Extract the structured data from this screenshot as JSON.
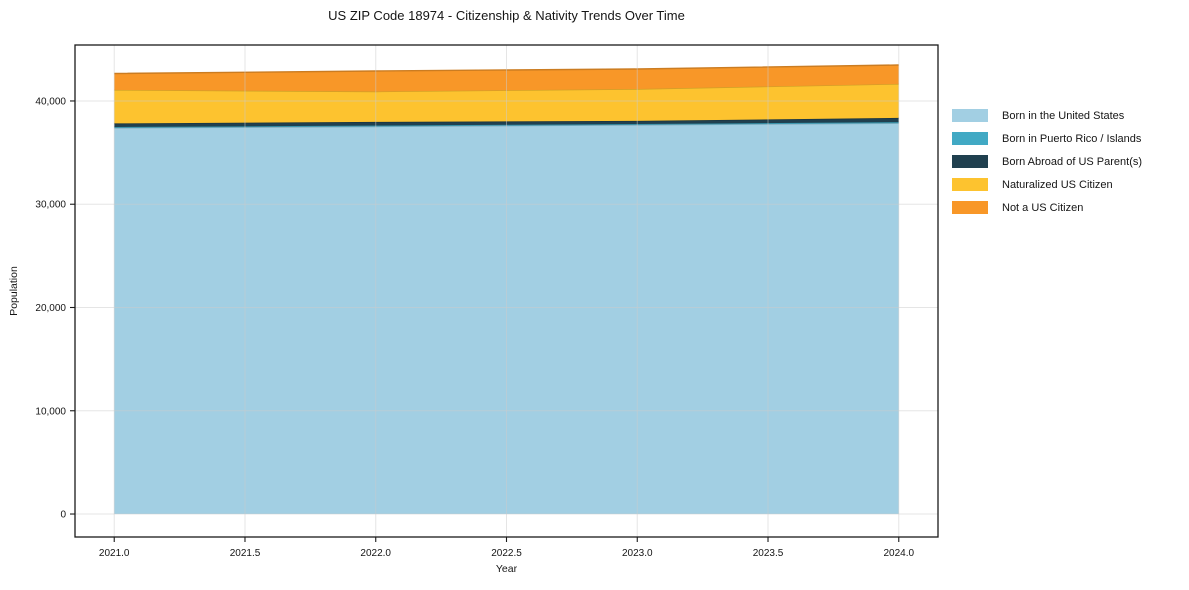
{
  "chart_data": {
    "type": "area",
    "stacked": true,
    "title": "US ZIP Code 18974 - Citizenship & Nativity Trends Over Time",
    "xlabel": "Year",
    "ylabel": "Population",
    "x": [
      2021,
      2022,
      2023,
      2024
    ],
    "series": [
      {
        "name": "Born in the United States",
        "color": "#a2cfe3",
        "values": [
          37390,
          37530,
          37680,
          37850
        ]
      },
      {
        "name": "Born in Puerto Rico / Islands",
        "color": "#41a9c4",
        "values": [
          90,
          90,
          90,
          100
        ]
      },
      {
        "name": "Born Abroad of US Parent(s)",
        "color": "#20404f",
        "values": [
          350,
          350,
          300,
          410
        ]
      },
      {
        "name": "Naturalized US Citizen",
        "color": "#fdc32f",
        "values": [
          3240,
          2950,
          3090,
          3290
        ]
      },
      {
        "name": "Not a US Citizen",
        "color": "#f89728",
        "values": [
          1590,
          1980,
          1940,
          1830
        ]
      }
    ],
    "totals": [
      42660,
      42900,
      43100,
      43480
    ],
    "xlim": [
      2020.85,
      2024.15
    ],
    "ylim": [
      -2225,
      45420
    ],
    "x_ticks": [
      {
        "value": 2021.0,
        "label": "2021.0"
      },
      {
        "value": 2021.5,
        "label": "2021.5"
      },
      {
        "value": 2022.0,
        "label": "2022.0"
      },
      {
        "value": 2022.5,
        "label": "2022.5"
      },
      {
        "value": 2023.0,
        "label": "2023.0"
      },
      {
        "value": 2023.5,
        "label": "2023.5"
      },
      {
        "value": 2024.0,
        "label": "2024.0"
      }
    ],
    "y_ticks": [
      {
        "value": 0,
        "label": "0"
      },
      {
        "value": 10000,
        "label": "10,000"
      },
      {
        "value": 20000,
        "label": "20,000"
      },
      {
        "value": 30000,
        "label": "30,000"
      },
      {
        "value": 40000,
        "label": "40,000"
      }
    ],
    "grid": true,
    "legend_position": "right-outside",
    "colors": {
      "background": "#ffffff",
      "spine": "#1a1a1a",
      "grid": "#cccccc",
      "text": "#151515"
    }
  }
}
